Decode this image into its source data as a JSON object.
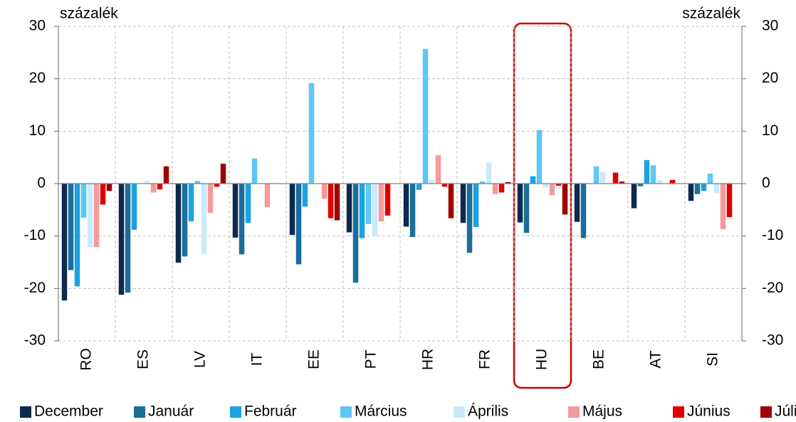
{
  "chart_data": {
    "type": "bar",
    "y_label": "százalék",
    "y2_label": "százalék",
    "categories": [
      "RO",
      "ES",
      "LV",
      "IT",
      "EE",
      "PT",
      "HR",
      "FR",
      "HU",
      "BE",
      "AT",
      "SI"
    ],
    "series": [
      {
        "name": "December",
        "color": "#0d2a4e",
        "values": [
          -22.3,
          -21.2,
          -15.1,
          -10.3,
          -9.8,
          -9.3,
          -8.2,
          -7.5,
          -7.4,
          -7.3,
          -4.7,
          -3.3
        ]
      },
      {
        "name": "Január",
        "color": "#1a6e9a",
        "values": [
          -16.5,
          -20.8,
          -13.9,
          -13.5,
          -15.4,
          -18.9,
          -10.2,
          -13.2,
          -9.4,
          -10.4,
          -0.5,
          -2.0
        ]
      },
      {
        "name": "Február",
        "color": "#1aa3e0",
        "values": [
          -19.6,
          -8.8,
          -7.2,
          -7.5,
          -4.4,
          -10.4,
          -1.2,
          -8.3,
          1.4,
          0,
          4.5,
          -1.4
        ]
      },
      {
        "name": "Március",
        "color": "#5bc8f5",
        "values": [
          -6.5,
          0,
          0.5,
          4.8,
          19.2,
          -7.7,
          25.7,
          0.4,
          10.2,
          3.3,
          3.5,
          1.9
        ]
      },
      {
        "name": "Április",
        "color": "#c8eafb",
        "values": [
          -12.1,
          0.5,
          -13.4,
          0,
          0,
          -10.0,
          0.7,
          4.0,
          -0.7,
          2.2,
          0.7,
          -1.8
        ]
      },
      {
        "name": "Május",
        "color": "#f59a9a",
        "values": [
          -12.1,
          -1.7,
          -5.6,
          -4.5,
          -2.9,
          -7.2,
          5.4,
          -2.0,
          -2.2,
          0,
          0,
          -8.7
        ]
      },
      {
        "name": "Június",
        "color": "#e00000",
        "values": [
          -4.0,
          -1.1,
          -0.6,
          0,
          -6.6,
          -6.1,
          -0.6,
          -1.7,
          -0.4,
          2.1,
          0.7,
          -6.4
        ]
      },
      {
        "name": "Július",
        "color": "#a00000",
        "values": [
          -1.4,
          3.3,
          3.8,
          0,
          -7.0,
          0,
          -6.6,
          0.3,
          -5.9,
          0.4,
          0,
          0
        ]
      }
    ],
    "ylim": [
      -30,
      30
    ],
    "yticks": [
      -30,
      -20,
      -10,
      0,
      10,
      20,
      30
    ],
    "y2lim": [
      -30,
      30
    ],
    "y2ticks": [
      -30,
      -20,
      -10,
      0,
      10,
      20,
      30
    ],
    "grid": true
  }
}
